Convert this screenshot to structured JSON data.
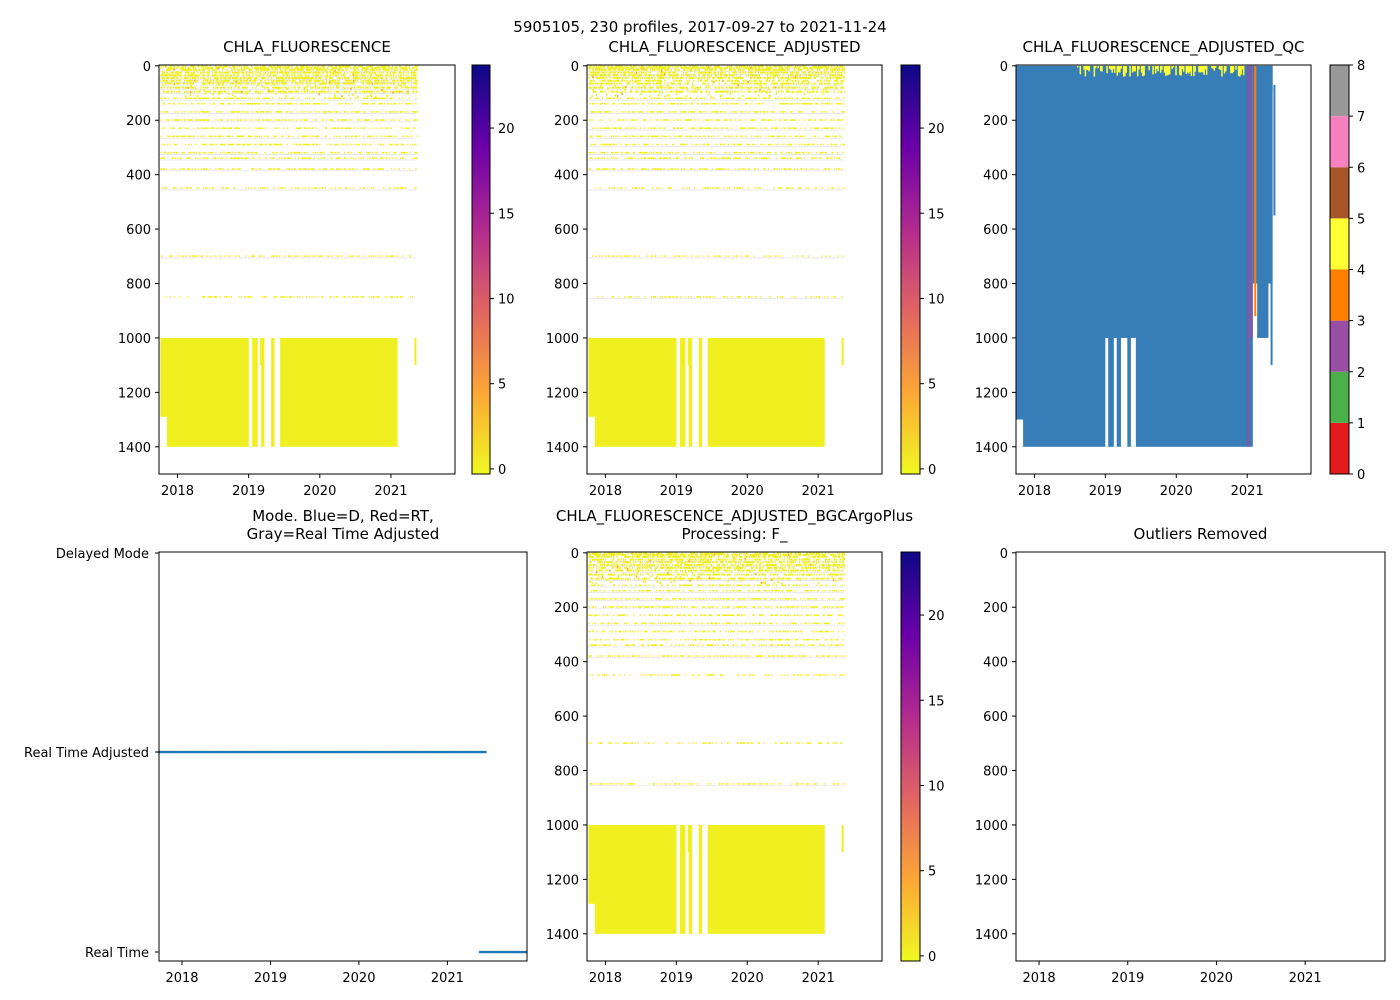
{
  "suptitle": "5905105, 230 profiles, 2017-09-27 to 2021-11-24",
  "colors": {
    "fill": "#f0f021",
    "qc_blue": "#377eb8",
    "mode_blue": "#1f77b4",
    "plasma": [
      "#0d0887",
      "#6a00a8",
      "#b12a90",
      "#e16462",
      "#fca636",
      "#f0f921"
    ],
    "qc": [
      "#e41a1c",
      "#377eb8",
      "#4daf4a",
      "#984ea3",
      "#ff7f00",
      "#ffff33",
      "#a65628",
      "#f781bf",
      "#999999"
    ]
  },
  "chart_data": [
    {
      "type": "heatmap",
      "title": "CHLA_FLUORESCENCE",
      "xlim": [
        2017.74,
        2021.9
      ],
      "ylim": [
        1500,
        -3
      ],
      "xticks": [
        "2018",
        "2019",
        "2020",
        "2021"
      ],
      "yticks": [
        "0",
        "200",
        "400",
        "600",
        "800",
        "1000",
        "1200",
        "1400"
      ],
      "colorbar": {
        "ticks": [
          "0",
          "5",
          "10",
          "15",
          "20"
        ],
        "range": [
          -0.3,
          23.7
        ]
      },
      "profiles": 230,
      "last_profile": 2021.36,
      "surface_lines": [
        3,
        8,
        15,
        25,
        35,
        45,
        55,
        65,
        80,
        95,
        120,
        140,
        170,
        200,
        230,
        260,
        290,
        320,
        340,
        380,
        450,
        700,
        850
      ],
      "deep_block": {
        "top": 1000,
        "bottom": 1400,
        "end": 2021.08,
        "gaps": [
          [
            2019.0,
            2019.04
          ],
          [
            2019.12,
            2019.16
          ],
          [
            2019.22,
            2019.31
          ],
          [
            2019.36,
            2019.43
          ]
        ]
      }
    },
    {
      "type": "heatmap",
      "title": "CHLA_FLUORESCENCE_ADJUSTED",
      "xlim": [
        2017.74,
        2021.9
      ],
      "ylim": [
        1500,
        -3
      ],
      "xticks": [
        "2018",
        "2019",
        "2020",
        "2021"
      ],
      "yticks": [
        "0",
        "200",
        "400",
        "600",
        "800",
        "1000",
        "1200",
        "1400"
      ],
      "colorbar": {
        "ticks": [
          "0",
          "5",
          "10",
          "15",
          "20"
        ],
        "range": [
          -0.3,
          23.7
        ]
      }
    },
    {
      "type": "heatmap",
      "title": "CHLA_FLUORESCENCE_ADJUSTED_QC",
      "xlim": [
        2017.74,
        2021.9
      ],
      "ylim": [
        1500,
        -3
      ],
      "xticks": [
        "2018",
        "2019",
        "2020",
        "2021"
      ],
      "yticks": [
        "0",
        "200",
        "400",
        "600",
        "800",
        "1000",
        "1200",
        "1400"
      ],
      "colorbar": {
        "ticks": [
          "0",
          "1",
          "2",
          "3",
          "4",
          "5",
          "6",
          "7",
          "8"
        ],
        "range": [
          0,
          8
        ]
      }
    },
    {
      "type": "scatter",
      "title": "Mode. Blue=D, Red=RT,\nGray=Real Time Adjusted",
      "xlim": [
        2017.74,
        2021.9
      ],
      "xticks": [
        "2018",
        "2019",
        "2020",
        "2021"
      ],
      "yticks": [
        "Delayed Mode",
        "Real Time Adjusted",
        "Real Time"
      ],
      "series": [
        {
          "mode": "Real Time Adjusted",
          "from": 2017.74,
          "to": 2021.44
        },
        {
          "mode": "Real Time",
          "from": 2021.37,
          "to": 2021.9
        }
      ]
    },
    {
      "type": "heatmap",
      "title": "CHLA_FLUORESCENCE_ADJUSTED_BGCArgoPlus\nProcessing: F_",
      "xlim": [
        2017.74,
        2021.9
      ],
      "ylim": [
        1500,
        -3
      ],
      "xticks": [
        "2018",
        "2019",
        "2020",
        "2021"
      ],
      "yticks": [
        "0",
        "200",
        "400",
        "600",
        "800",
        "1000",
        "1200",
        "1400"
      ],
      "colorbar": {
        "ticks": [
          "0",
          "5",
          "10",
          "15",
          "20"
        ],
        "range": [
          -0.3,
          23.7
        ]
      }
    },
    {
      "type": "heatmap",
      "title": "Outliers Removed",
      "xlim": [
        2017.74,
        2021.9
      ],
      "ylim": [
        1500,
        -3
      ],
      "xticks": [
        "2018",
        "2019",
        "2020",
        "2021"
      ],
      "yticks": [
        "0",
        "200",
        "400",
        "600",
        "800",
        "1000",
        "1200",
        "1400"
      ]
    }
  ]
}
